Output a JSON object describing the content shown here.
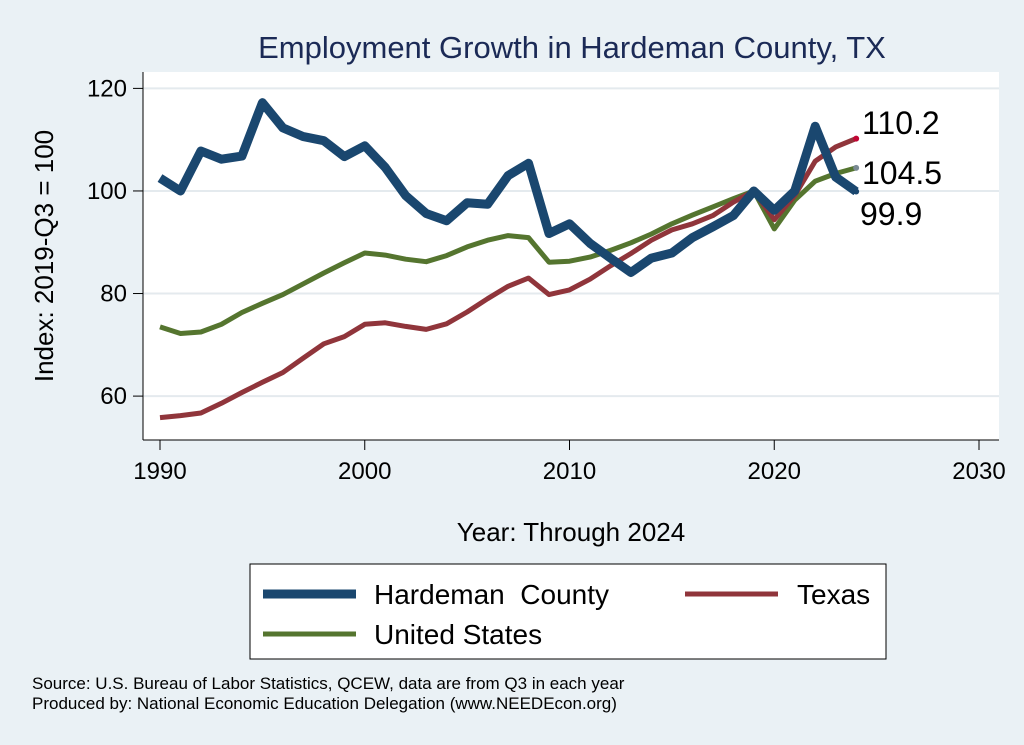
{
  "chart_data": {
    "type": "line",
    "title": "Employment Growth in Hardeman County, TX",
    "xlabel": "Year: Through 2024",
    "ylabel": "Index: 2019-Q3 = 100",
    "xlim": [
      1990,
      2030
    ],
    "ylim": [
      53,
      123
    ],
    "xticks": [
      1990,
      2000,
      2010,
      2020,
      2030
    ],
    "yticks": [
      60,
      80,
      100,
      120
    ],
    "grid": true,
    "x": [
      1990,
      1991,
      1992,
      1993,
      1994,
      1995,
      1996,
      1997,
      1998,
      1999,
      2000,
      2001,
      2002,
      2003,
      2004,
      2005,
      2006,
      2007,
      2008,
      2009,
      2010,
      2011,
      2012,
      2013,
      2014,
      2015,
      2016,
      2017,
      2018,
      2019,
      2020,
      2021,
      2022,
      2023,
      2024
    ],
    "series": [
      {
        "name": "Hardeman  County",
        "color": "#1a476f",
        "width": 9,
        "values": [
          102.5,
          100.0,
          107.8,
          106.2,
          106.8,
          117.2,
          112.3,
          110.6,
          109.8,
          106.7,
          108.8,
          104.6,
          99.1,
          95.6,
          94.2,
          97.7,
          97.4,
          103.0,
          105.4,
          91.7,
          93.6,
          89.8,
          86.9,
          84.1,
          86.9,
          87.9,
          90.9,
          93.0,
          95.2,
          100.0,
          96.2,
          100.0,
          112.6,
          102.7,
          99.9
        ],
        "end_label": "99.9",
        "end_color": "#1a476f"
      },
      {
        "name": "Texas",
        "color": "#90353b",
        "width": 5,
        "values": [
          55.8,
          56.2,
          56.7,
          58.6,
          60.7,
          62.7,
          64.6,
          67.4,
          70.2,
          71.6,
          74.0,
          74.3,
          73.6,
          73.0,
          74.1,
          76.4,
          79.0,
          81.4,
          83.0,
          79.8,
          80.7,
          82.8,
          85.4,
          87.8,
          90.4,
          92.4,
          93.6,
          95.2,
          97.8,
          100.0,
          94.4,
          99.1,
          105.8,
          108.6,
          110.2
        ],
        "end_label": "110.2",
        "end_color": "#c10534"
      },
      {
        "name": "United States",
        "color": "#55752f",
        "width": 5,
        "values": [
          73.5,
          72.2,
          72.5,
          74.0,
          76.3,
          78.1,
          79.8,
          81.9,
          84.0,
          86.0,
          87.9,
          87.5,
          86.7,
          86.2,
          87.4,
          89.1,
          90.4,
          91.3,
          90.9,
          86.1,
          86.3,
          87.1,
          88.4,
          89.9,
          91.6,
          93.6,
          95.3,
          96.9,
          98.5,
          100.0,
          92.6,
          98.2,
          101.9,
          103.4,
          104.5
        ],
        "end_label": "104.5",
        "end_color": "#7a8a94"
      }
    ],
    "legend": {
      "placement": "bottom",
      "items": [
        "Hardeman  County",
        "Texas",
        "United States"
      ]
    }
  },
  "source": {
    "line1": "Source: U.S. Bureau of Labor Statistics, QCEW, data are from Q3 in each year",
    "line2": "Produced by: National Economic Education Delegation (www.NEEDEcon.org)"
  }
}
